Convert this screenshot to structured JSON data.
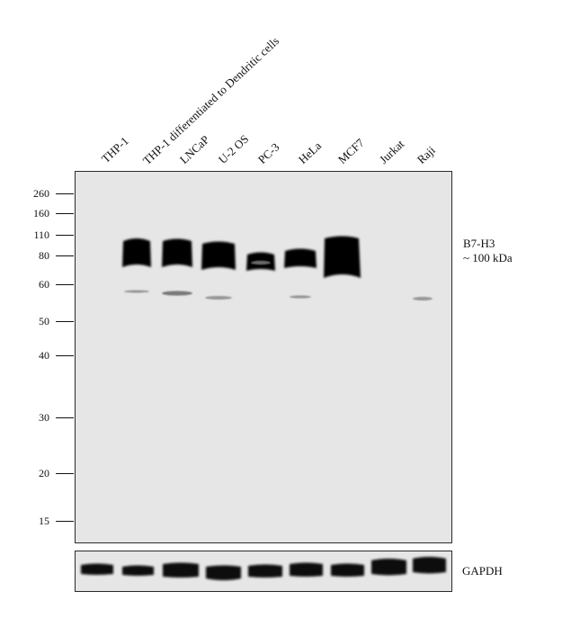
{
  "lanes": [
    {
      "label": "THP-1"
    },
    {
      "label": "THP-1 differentiated  to Dendritic cells"
    },
    {
      "label": "LNCaP"
    },
    {
      "label": "U-2 OS"
    },
    {
      "label": "PC-3"
    },
    {
      "label": "HeLa"
    },
    {
      "label": "MCF7"
    },
    {
      "label": "Jurkat"
    },
    {
      "label": "Raji"
    }
  ],
  "markers": [
    "260",
    "160",
    "110",
    "80",
    "60",
    "50",
    "40",
    "30",
    "20",
    "15"
  ],
  "target": {
    "name": "B7-H3",
    "size": "~ 100 kDa"
  },
  "loading_control": {
    "name": "GAPDH"
  }
}
